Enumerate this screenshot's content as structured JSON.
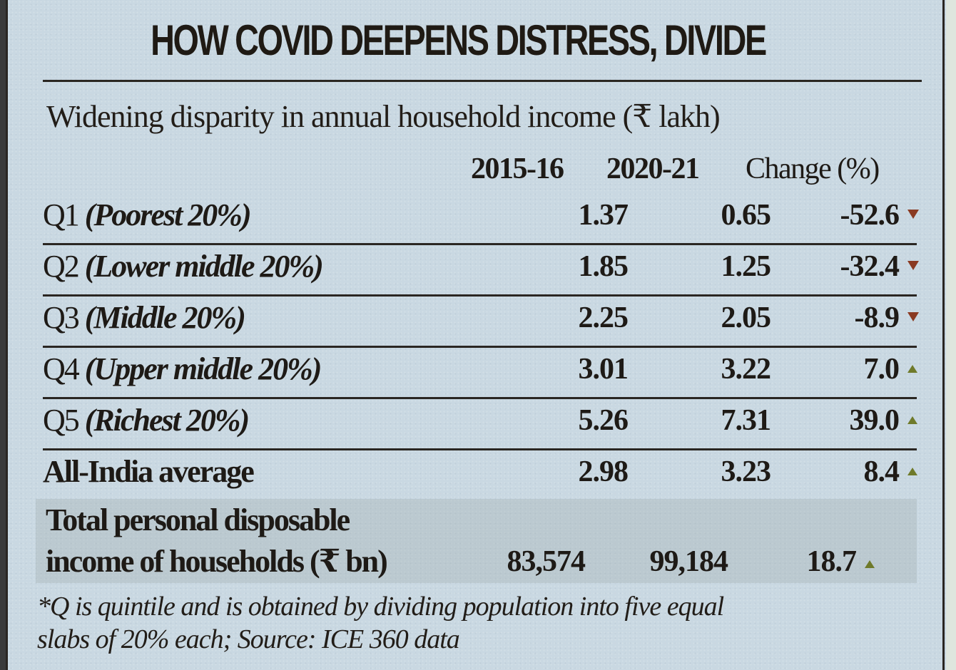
{
  "chart_data": {
    "type": "table",
    "title": "HOW COVID DEEPENS DISTRESS, DIVIDE",
    "subtitle": "Widening disparity in annual household income (₹ lakh)",
    "columns": [
      "2015-16",
      "2020-21",
      "Change (%)"
    ],
    "rows": [
      {
        "quintile": "Q1",
        "desc": "(Poorest 20%)",
        "v2015": "1.37",
        "v2020": "0.65",
        "change": "-52.6",
        "direction": "down"
      },
      {
        "quintile": "Q2",
        "desc": "(Lower middle 20%)",
        "v2015": "1.85",
        "v2020": "1.25",
        "change": "-32.4",
        "direction": "down"
      },
      {
        "quintile": "Q3",
        "desc": "(Middle 20%)",
        "v2015": "2.25",
        "v2020": "2.05",
        "change": "-8.9",
        "direction": "down"
      },
      {
        "quintile": "Q4",
        "desc": "(Upper middle 20%)",
        "v2015": "3.01",
        "v2020": "3.22",
        "change": "7.0",
        "direction": "up"
      },
      {
        "quintile": "Q5",
        "desc": "(Richest 20%)",
        "v2015": "5.26",
        "v2020": "7.31",
        "change": "39.0",
        "direction": "up"
      },
      {
        "quintile": "All-India average",
        "desc": "",
        "v2015": "2.98",
        "v2020": "3.23",
        "change": "8.4",
        "direction": "up"
      }
    ],
    "total": {
      "label_line1": "Total personal disposable",
      "label_line2": "income of households (₹ bn)",
      "v2015": "83,574",
      "v2020": "99,184",
      "change": "18.7",
      "direction": "up"
    },
    "footnote_line1": "*Q is quintile and is obtained by dividing population into five equal",
    "footnote_line2": "slabs of 20% each; Source: ICE 360 data"
  },
  "colors": {
    "down_marker": "#8a3a22",
    "up_marker": "#6f7a2a",
    "paper": "#c9d8e2"
  }
}
